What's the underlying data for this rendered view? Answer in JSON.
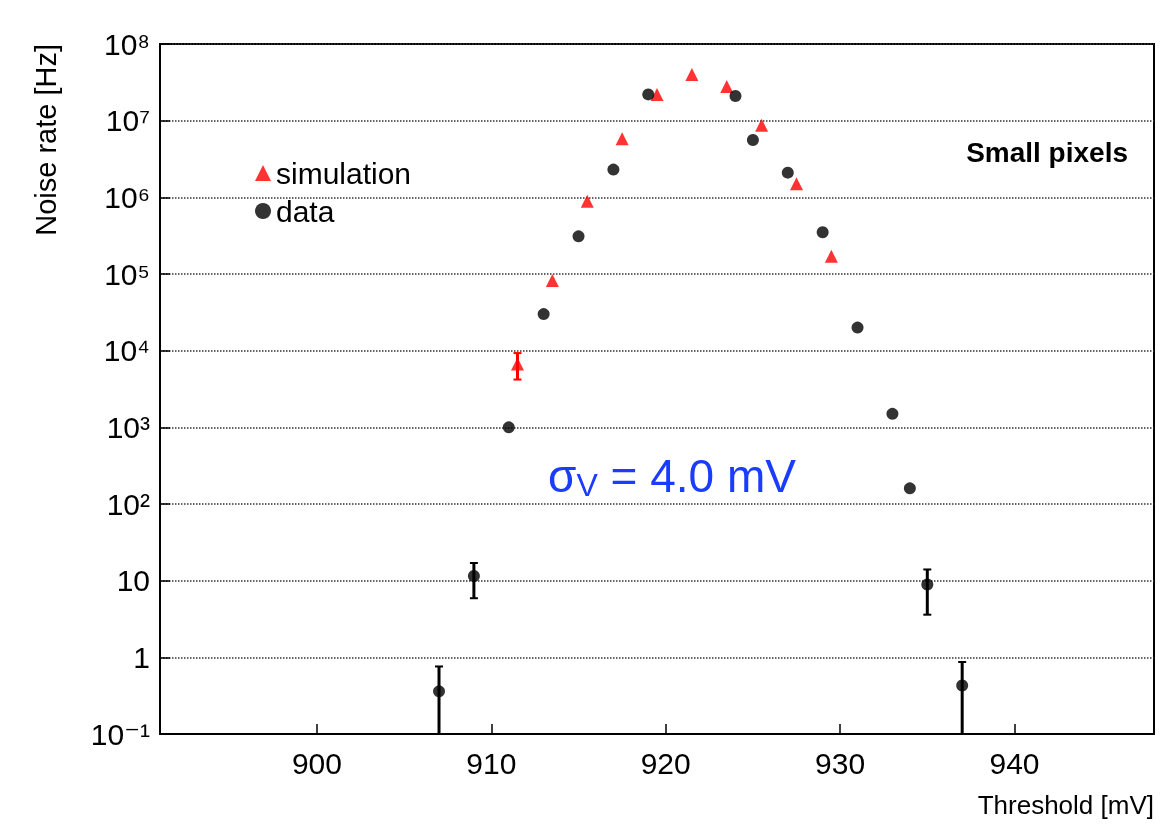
{
  "chart_data": {
    "type": "scatter",
    "xlabel": "Threshold [mV]",
    "ylabel": "Noise rate [Hz]",
    "annotations": [
      "Small pixels",
      "σ$_{V}$ = 4.0 mV"
    ],
    "xlim": [
      891,
      948
    ],
    "xticks": [
      900,
      910,
      920,
      930,
      940
    ],
    "ylim": [
      0.1,
      100000000
    ],
    "log": "y",
    "yticks": [
      {
        "value": 0.1,
        "label": "10⁻¹"
      },
      1,
      10,
      {
        "value": 100,
        "label": "10²"
      },
      {
        "value": 1000,
        "label": "10³"
      },
      {
        "value": 10000,
        "label": "10⁴"
      },
      {
        "value": 100000,
        "label": "10⁵"
      },
      {
        "value": 1000000,
        "label": "10⁶"
      },
      {
        "value": 10000000,
        "label": "10⁷"
      },
      {
        "value": 100000000,
        "label": "10⁸"
      }
    ],
    "grid": "y",
    "legend": "top left",
    "series": [
      {
        "name": "simulation",
        "color": "#ff0000",
        "marker": "triangle",
        "x": [
          911.5,
          913.5,
          915.5,
          917.5,
          919.5,
          921.5,
          923.5,
          925.5,
          927.5,
          929.5
        ],
        "values": [
          6700,
          82000,
          890000,
          5800000,
          22000000,
          40000000,
          28000000,
          8700000,
          1500000,
          170000
        ],
        "errors": [
          [
            4200,
            9300
          ],
          null,
          null,
          null,
          null,
          null,
          null,
          null,
          null,
          null
        ]
      },
      {
        "name": "data",
        "color": "#000000",
        "marker": "circle",
        "x": [
          907,
          909,
          911,
          913,
          915,
          917,
          919,
          924,
          925,
          927,
          929,
          931,
          933,
          934,
          935,
          937
        ],
        "values": [
          0.36,
          11.5,
          1000,
          30000,
          310000,
          2300000,
          22000000,
          21000000,
          5600000,
          2100000,
          350000,
          20000,
          1500,
          160,
          8.9,
          0.43
        ],
        "errors": [
          [
            0.1,
            0.76
          ],
          [
            5.9,
            17
          ],
          null,
          null,
          null,
          null,
          null,
          null,
          null,
          null,
          null,
          null,
          null,
          null,
          [
            3.6,
            14
          ],
          [
            0.1,
            0.87
          ]
        ]
      }
    ]
  }
}
